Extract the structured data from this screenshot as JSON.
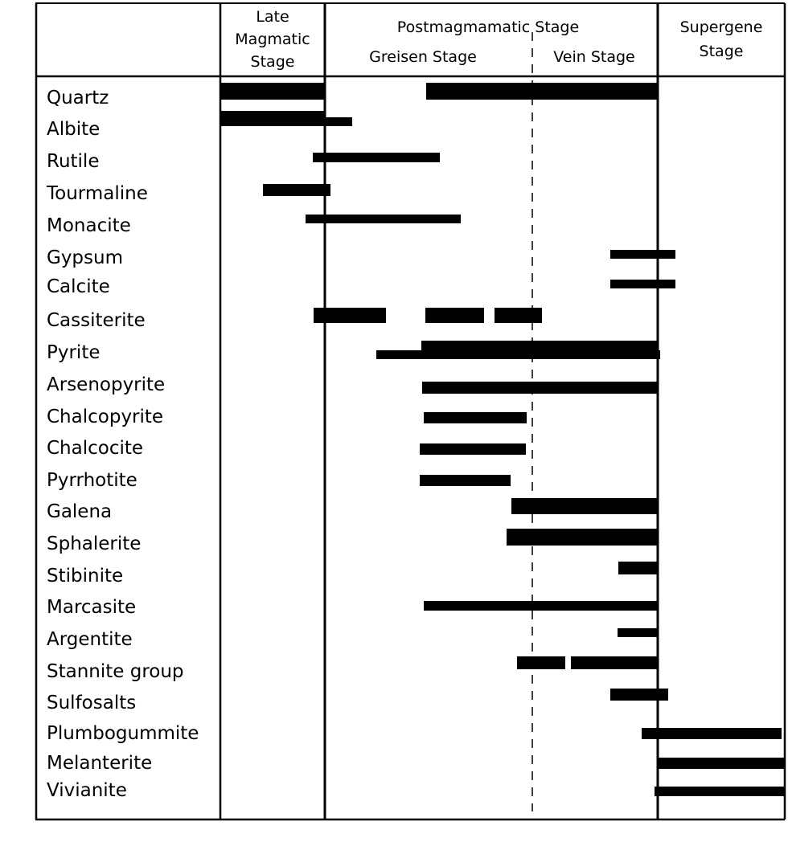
{
  "headers": {
    "late_magmatic": [
      "Late",
      "Magmatic",
      "Stage"
    ],
    "postmagmatic": "Postmagmamatic Stage",
    "greisen": "Greisen Stage",
    "vein": "Vein Stage",
    "supergene": [
      "Supergene",
      "Stage"
    ]
  },
  "minerals": [
    "Quartz",
    "Albite",
    "Rutile",
    "Tourmaline",
    "Monacite",
    "Gypsum",
    "Calcite",
    "Cassiterite",
    "Pyrite",
    "Arsenopyrite",
    "Chalcopyrite",
    "Chalcocite",
    "Pyrrhotite",
    "Galena",
    "Sphalerite",
    "Stibinite",
    "Marcasite",
    "Argentite",
    "Stannite group",
    "Sulfosalts",
    "Plumbogummite",
    "Melanterite",
    "Vivianite"
  ],
  "colors": {
    "bar": "#000000",
    "line": "#000000",
    "background": "#ffffff"
  }
}
